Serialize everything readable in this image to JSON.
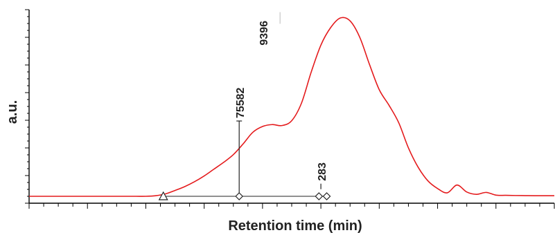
{
  "chart_data": {
    "type": "line",
    "xlabel": "Retention time (min)",
    "ylabel": "a.u.",
    "x_tick_labels_shown": false,
    "y_tick_labels_shown": false,
    "x": [
      0,
      0.5,
      1,
      1.5,
      2,
      2.5,
      3,
      3.5,
      4,
      4.5,
      5,
      5.5,
      6,
      6.5,
      7,
      7.5,
      8,
      8.5,
      9,
      9.5,
      10,
      10.5,
      11,
      11.5,
      12,
      12.5,
      13,
      13.5,
      14,
      14.5,
      15,
      15.5,
      16,
      16.5,
      17,
      17.5,
      18,
      18.5,
      19,
      19.5,
      20,
      20.5,
      21,
      21.5,
      22,
      22.5,
      23,
      23.5,
      24,
      24.5,
      25,
      25.5,
      26,
      26.5,
      27
    ],
    "series": [
      {
        "color": "#e41a1c",
        "values": [
          0,
          0,
          0,
          0,
          0,
          0,
          0,
          0,
          0,
          0,
          0,
          0,
          0,
          0.3,
          1.2,
          3,
          5,
          7.5,
          10.5,
          14,
          17.5,
          21.5,
          27,
          33,
          36,
          37,
          36.5,
          39,
          48,
          64,
          78,
          87,
          92,
          90.5,
          82,
          68,
          55,
          47,
          38,
          25,
          15,
          8,
          4,
          1.8,
          5.8,
          2.2,
          1,
          2,
          0.6,
          0.5,
          0.4,
          0.35,
          0.3,
          0.3,
          0.3
        ]
      }
    ],
    "xlim": [
      0,
      27
    ],
    "ylim": [
      -5,
      100
    ],
    "baseline_marker": {
      "type": "triangle",
      "x": 6.9,
      "y": 0
    },
    "peak_markers": [
      {
        "x": 10.8,
        "y": 0,
        "shape": "diamond"
      },
      {
        "x": 14.9,
        "y": 0,
        "shape": "diamond"
      },
      {
        "x": 15.3,
        "y": 0,
        "shape": "diamond"
      }
    ],
    "annotations": [
      {
        "text": "75582",
        "x": 10.8,
        "y": 36,
        "line_to_baseline": true
      },
      {
        "text": "9396",
        "x": 12.0,
        "y": 92,
        "line_to_baseline": false
      },
      {
        "text": "283",
        "x": 15.0,
        "y": 5.8,
        "line_to_baseline": false
      }
    ]
  }
}
